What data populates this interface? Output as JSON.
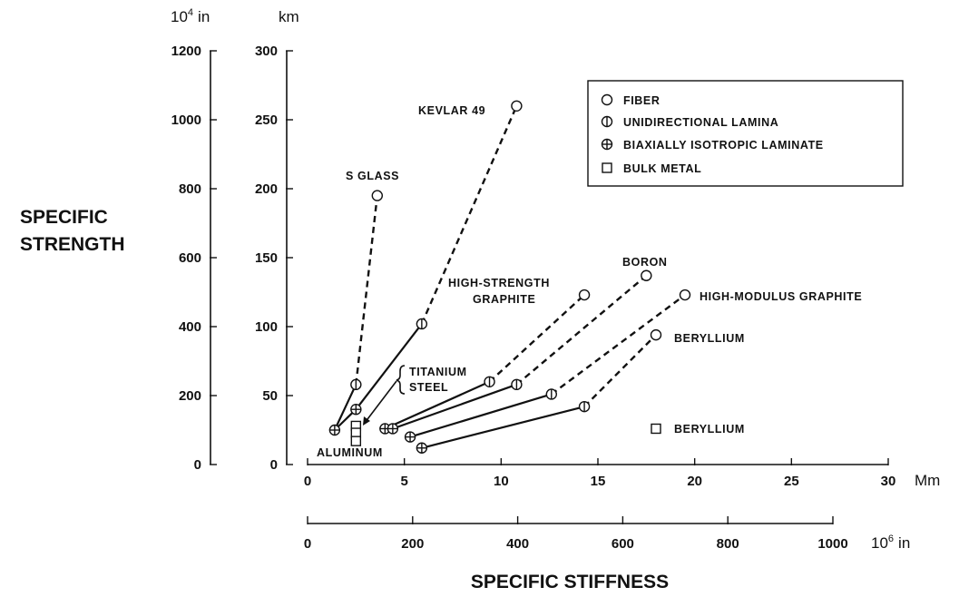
{
  "chart_data": {
    "type": "scatter",
    "title": "",
    "xlabel": "SPECIFIC STIFFNESS",
    "ylabel_line1": "SPECIFIC",
    "ylabel_line2": "STRENGTH",
    "x_primary": {
      "unit": "Mm",
      "range": [
        0,
        30
      ],
      "ticks": [
        0,
        5,
        10,
        15,
        20,
        25,
        30
      ]
    },
    "x_secondary": {
      "unit": "10^6 in",
      "unit_base": "10",
      "unit_exp": "6",
      "unit_suffix": "in",
      "range": [
        0,
        1000
      ],
      "ticks": [
        0,
        200,
        400,
        600,
        800,
        1000
      ]
    },
    "y_primary": {
      "unit": "km",
      "range": [
        0,
        300
      ],
      "ticks": [
        0,
        50,
        100,
        150,
        200,
        250,
        300
      ]
    },
    "y_secondary": {
      "unit": "10^4 in",
      "unit_base": "10",
      "unit_exp": "4",
      "unit_suffix": "in",
      "range": [
        0,
        1200
      ],
      "ticks": [
        0,
        200,
        400,
        600,
        800,
        1000,
        1200
      ]
    },
    "legend": {
      "placement": "top-right",
      "entries": [
        {
          "marker": "circle",
          "label": "FIBER"
        },
        {
          "marker": "circle-vertical",
          "label": "UNIDIRECTIONAL LAMINA"
        },
        {
          "marker": "circle-cross",
          "label": "BIAXIALLY ISOTROPIC LAMINATE"
        },
        {
          "marker": "square",
          "label": "BULK METAL"
        }
      ]
    },
    "series": [
      {
        "label": "KEVLAR 49",
        "fiber": [
          10.8,
          260
        ],
        "lamina": [
          5.9,
          102
        ],
        "laminate": [
          2.5,
          40
        ],
        "base": [
          1.4,
          25
        ]
      },
      {
        "label": "S GLASS",
        "fiber": [
          3.6,
          195
        ],
        "lamina": [
          2.5,
          58
        ]
      },
      {
        "label_line1": "HIGH-STRENGTH",
        "label_line2": "GRAPHITE",
        "fiber": [
          14.3,
          123
        ],
        "lamina": [
          9.4,
          60
        ],
        "laminate": [
          4.0,
          26
        ]
      },
      {
        "label": "BORON",
        "fiber": [
          17.5,
          137
        ],
        "lamina": [
          10.8,
          58
        ],
        "laminate": [
          4.4,
          26
        ]
      },
      {
        "label": "HIGH-MODULUS GRAPHITE",
        "fiber": [
          19.5,
          123
        ],
        "lamina": [
          12.6,
          51
        ],
        "laminate": [
          5.3,
          20
        ]
      },
      {
        "label": "BERYLLIUM",
        "fiber": [
          18.0,
          94
        ],
        "lamina": [
          14.3,
          42
        ],
        "laminate": [
          5.9,
          12
        ]
      }
    ],
    "bulk_metals": {
      "points": [
        [
          2.5,
          28
        ],
        [
          2.5,
          23
        ],
        [
          2.5,
          17
        ],
        [
          18.0,
          26
        ]
      ],
      "labels": {
        "titanium": "TITANIUM",
        "steel": "STEEL",
        "aluminum": "ALUMINUM",
        "beryllium": "BERYLLIUM"
      }
    }
  }
}
